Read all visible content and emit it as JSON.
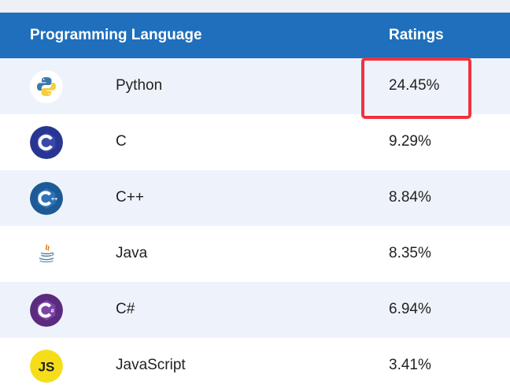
{
  "header": {
    "language_label": "Programming Language",
    "ratings_label": "Ratings"
  },
  "rows": [
    {
      "icon": "python-logo-icon",
      "language": "Python",
      "rating": "24.45%"
    },
    {
      "icon": "c-logo-icon",
      "language": "C",
      "rating": "9.29%"
    },
    {
      "icon": "cpp-logo-icon",
      "language": "C++",
      "rating": "8.84%"
    },
    {
      "icon": "java-logo-icon",
      "language": "Java",
      "rating": "8.35%"
    },
    {
      "icon": "csharp-logo-icon",
      "language": "C#",
      "rating": "6.94%"
    },
    {
      "icon": "javascript-logo-icon",
      "language": "JavaScript",
      "rating": "3.41%"
    }
  ],
  "highlight": {
    "row_index": 0,
    "column": "rating",
    "color": "#ef3340"
  },
  "colors": {
    "header": "#1f6fbc",
    "alt_row": "#eef3fb"
  }
}
